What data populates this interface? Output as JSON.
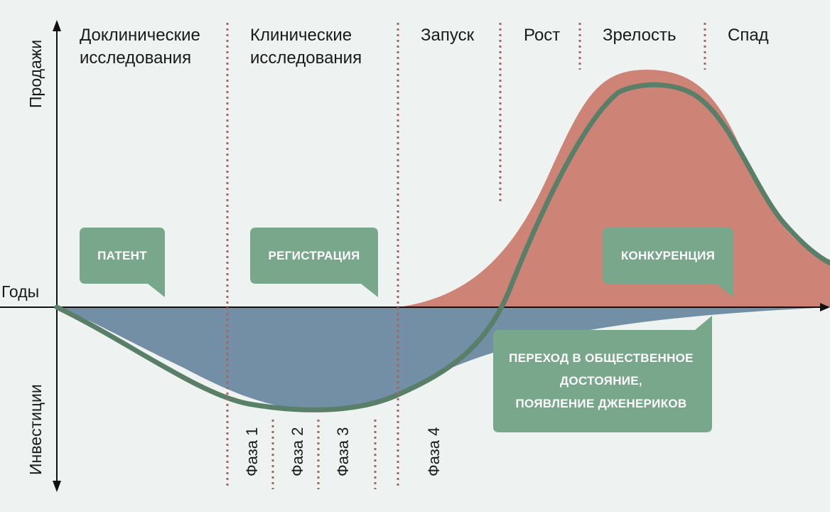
{
  "axes": {
    "sales_label": "Продажи",
    "investment_label": "Инвестиции",
    "years_label": "Годы"
  },
  "stages": [
    {
      "line1": "Доклинические",
      "line2": "исследования"
    },
    {
      "line1": "Клинические",
      "line2": "исследования"
    },
    {
      "line1": "Запуск",
      "line2": ""
    },
    {
      "line1": "Рост",
      "line2": ""
    },
    {
      "line1": "Зрелость",
      "line2": ""
    },
    {
      "line1": "Спад",
      "line2": ""
    }
  ],
  "phases": [
    "Фаза 1",
    "Фаза 2",
    "Фаза 3",
    "Фаза 4"
  ],
  "callouts": {
    "patent": "ПАТЕНТ",
    "registration": "РЕГИСТРАЦИЯ",
    "competition": "КОНКУРЕНЦИЯ",
    "generics": [
      "ПЕРЕХОД В ОБЩЕСТВЕННОЕ",
      "ДОСТОЯНИЕ,",
      "ПОЯВЛЕНИЕ ДЖЕНЕРИКОВ"
    ]
  },
  "colors": {
    "sales_area": "#cd8476",
    "investment_area": "#738fa6",
    "cumulative_line": "#5a7f69",
    "callout": "#78a78c",
    "divider": "#9a6b62",
    "axis": "#111111",
    "background": "#eef3f1"
  }
}
